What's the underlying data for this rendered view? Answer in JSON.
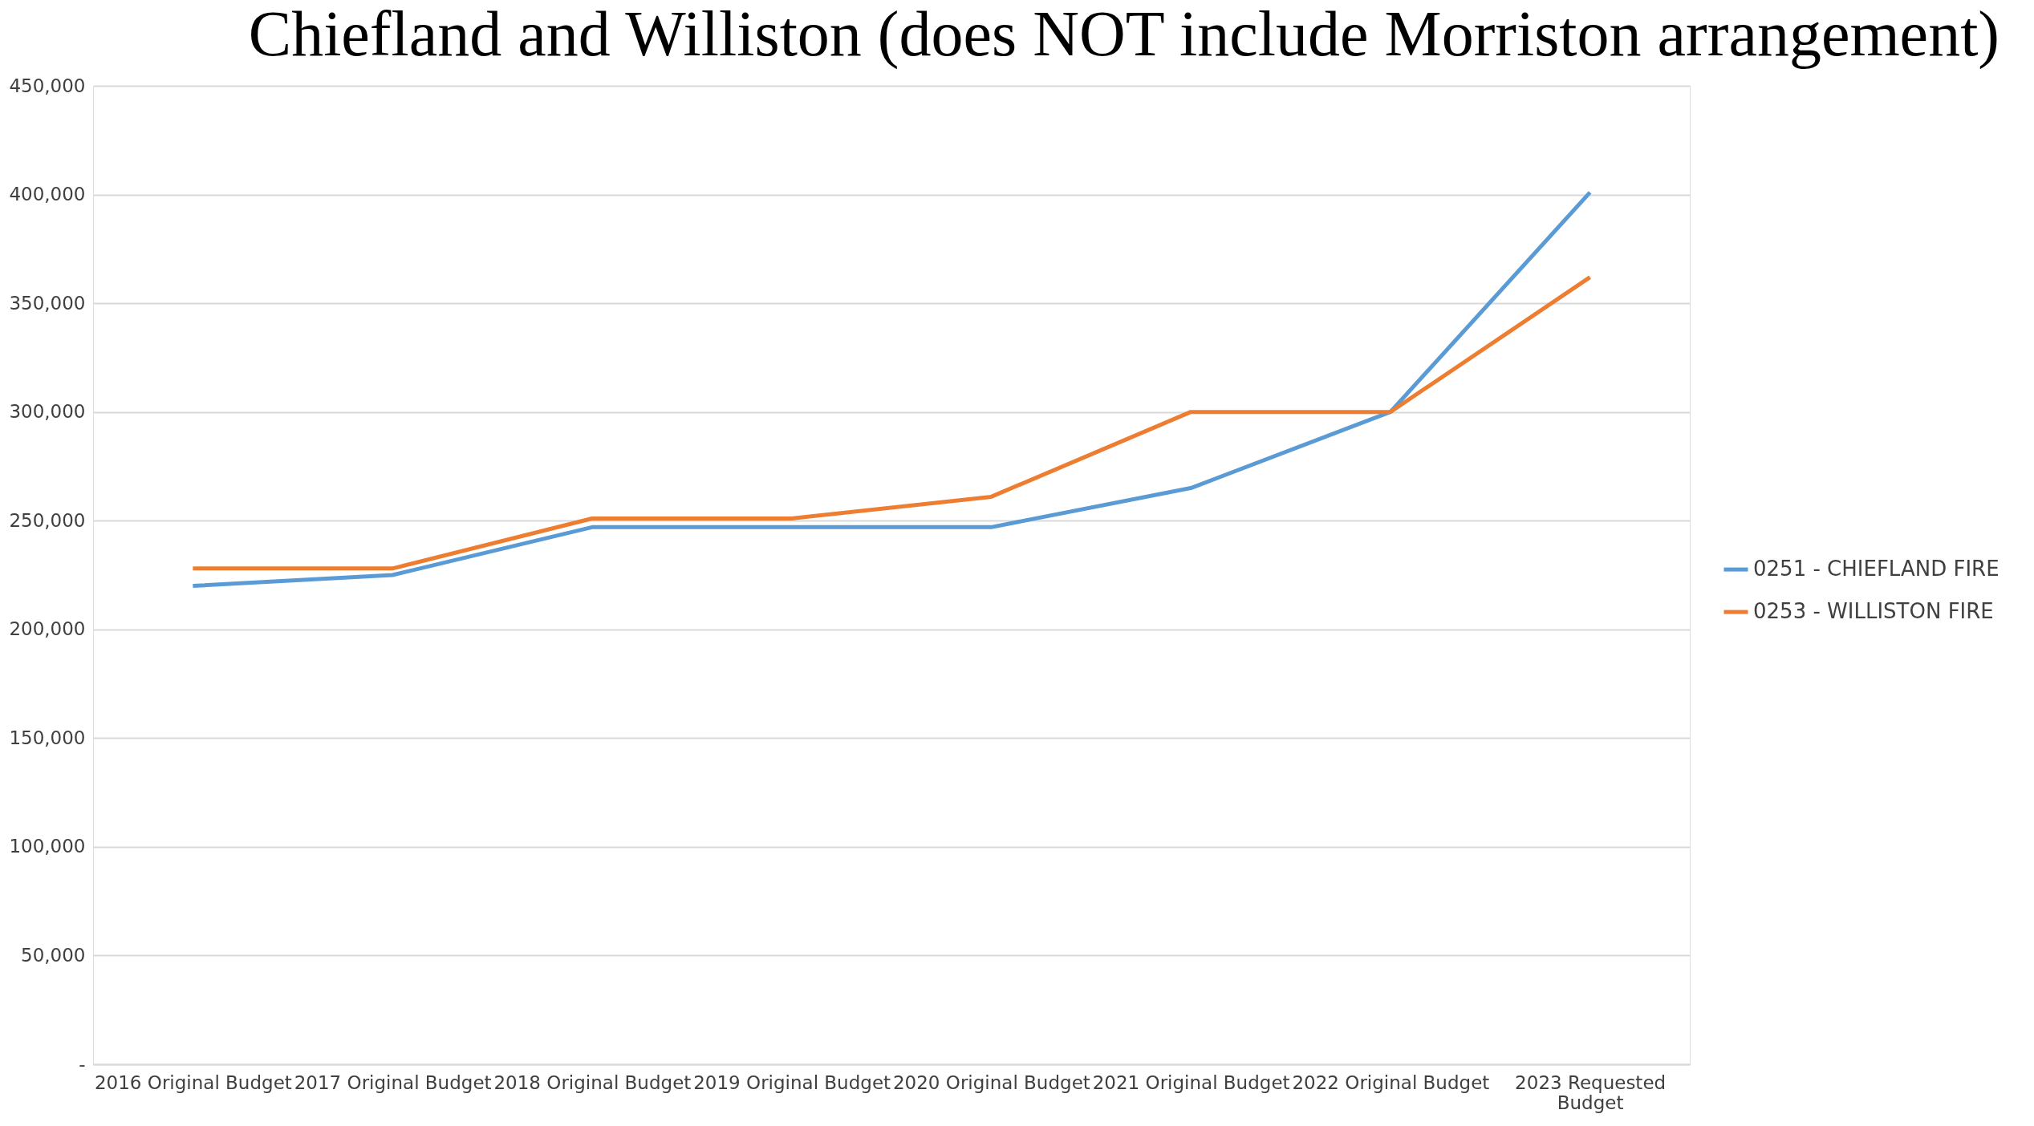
{
  "chart_data": {
    "type": "line",
    "title": "Chiefland and Williston (does NOT include Morriston arrangement)",
    "categories": [
      "2016 Original Budget",
      "2017 Original Budget",
      "2018 Original Budget",
      "2019 Original Budget",
      "2020 Original Budget",
      "2021 Original Budget",
      "2022 Original Budget",
      "2023 Requested Budget"
    ],
    "series": [
      {
        "name": "0251 - CHIEFLAND FIRE",
        "color": "#5b9bd5",
        "values": [
          220000,
          225000,
          247000,
          247000,
          247000,
          265000,
          300000,
          401000
        ]
      },
      {
        "name": "0253 - WILLISTON FIRE",
        "color": "#ed7d31",
        "values": [
          228000,
          228000,
          251000,
          251000,
          261000,
          300000,
          300000,
          362000
        ]
      }
    ],
    "ylim": [
      0,
      450000
    ],
    "yticks": [
      {
        "value": 0,
        "label": "-"
      },
      {
        "value": 50000,
        "label": "50,000"
      },
      {
        "value": 100000,
        "label": "100,000"
      },
      {
        "value": 150000,
        "label": "150,000"
      },
      {
        "value": 200000,
        "label": "200,000"
      },
      {
        "value": 250000,
        "label": "250,000"
      },
      {
        "value": 300000,
        "label": "300,000"
      },
      {
        "value": 350000,
        "label": "350,000"
      },
      {
        "value": 400000,
        "label": "400,000"
      },
      {
        "value": 450000,
        "label": "450,000"
      }
    ],
    "grid": "y",
    "legend": "right",
    "marker": "none",
    "line_style": "solid"
  }
}
